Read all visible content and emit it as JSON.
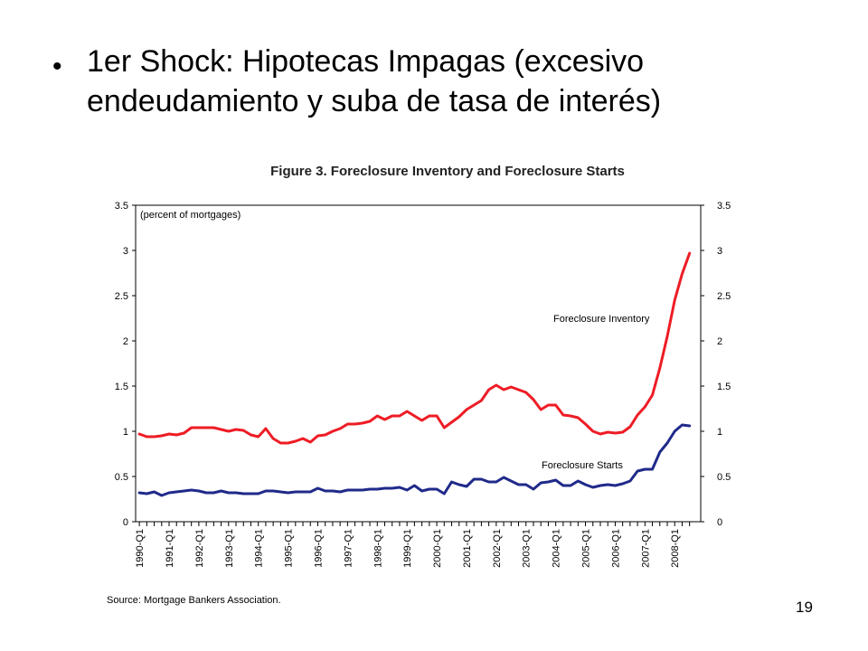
{
  "slide": {
    "bullet_marker": "•",
    "bullet_text": "1er Shock: Hipotecas Impagas (excesivo endeudamiento y suba de tasa de interés)",
    "page_number": "19"
  },
  "chart_data": {
    "type": "line",
    "title": "Figure 3.  Foreclosure Inventory and Foreclosure Starts",
    "unit_note": "(percent of mortgages)",
    "source": "Source:  Mortgage Bankers Association.",
    "ylim": [
      0,
      3.5
    ],
    "y_ticks": [
      "0",
      "0.5",
      "1",
      "1.5",
      "2",
      "2.5",
      "3",
      "3.5"
    ],
    "x_tick_labels": [
      "1990-Q1",
      "1991-Q1",
      "1992-Q1",
      "1993-Q1",
      "1994-Q1",
      "1995-Q1",
      "1996-Q1",
      "1997-Q1",
      "1998-Q1",
      "1999-Q1",
      "2000-Q1",
      "2001-Q1",
      "2002-Q1",
      "2003-Q1",
      "2004-Q1",
      "2005-Q1",
      "2006-Q1",
      "2007-Q1",
      "2008-Q1"
    ],
    "grid": false,
    "dual_axis_labels": true,
    "series": [
      {
        "name": "Foreclosure Inventory",
        "color": "#ee1c25",
        "values": [
          0.97,
          0.94,
          0.94,
          0.95,
          0.97,
          0.96,
          0.98,
          1.04,
          1.04,
          1.04,
          1.04,
          1.02,
          1.0,
          1.02,
          1.01,
          0.96,
          0.94,
          1.03,
          0.92,
          0.87,
          0.87,
          0.89,
          0.92,
          0.88,
          0.95,
          0.96,
          1.0,
          1.03,
          1.08,
          1.08,
          1.09,
          1.11,
          1.17,
          1.13,
          1.17,
          1.17,
          1.22,
          1.17,
          1.12,
          1.17,
          1.17,
          1.04,
          1.1,
          1.16,
          1.24,
          1.29,
          1.34,
          1.46,
          1.51,
          1.46,
          1.49,
          1.46,
          1.43,
          1.35,
          1.24,
          1.29,
          1.29,
          1.18,
          1.17,
          1.15,
          1.08,
          1.0,
          0.97,
          0.99,
          0.98,
          0.99,
          1.05,
          1.18,
          1.27,
          1.4,
          1.7,
          2.05,
          2.45,
          2.74,
          2.97
        ]
      },
      {
        "name": "Foreclosure Starts",
        "color": "#1f2a8a",
        "values": [
          0.32,
          0.31,
          0.33,
          0.29,
          0.32,
          0.33,
          0.34,
          0.35,
          0.34,
          0.32,
          0.32,
          0.34,
          0.32,
          0.32,
          0.31,
          0.31,
          0.31,
          0.34,
          0.34,
          0.33,
          0.32,
          0.33,
          0.33,
          0.33,
          0.37,
          0.34,
          0.34,
          0.33,
          0.35,
          0.35,
          0.35,
          0.36,
          0.36,
          0.37,
          0.37,
          0.38,
          0.35,
          0.4,
          0.34,
          0.36,
          0.36,
          0.31,
          0.44,
          0.41,
          0.39,
          0.47,
          0.47,
          0.44,
          0.44,
          0.49,
          0.45,
          0.41,
          0.41,
          0.36,
          0.43,
          0.44,
          0.46,
          0.4,
          0.4,
          0.45,
          0.41,
          0.38,
          0.4,
          0.41,
          0.4,
          0.42,
          0.45,
          0.56,
          0.58,
          0.58,
          0.77,
          0.87,
          1.0,
          1.07,
          1.06
        ]
      }
    ],
    "annotations": [
      {
        "text": "Foreclosure Inventory",
        "series": 0
      },
      {
        "text": "Foreclosure Starts",
        "series": 1
      }
    ]
  }
}
